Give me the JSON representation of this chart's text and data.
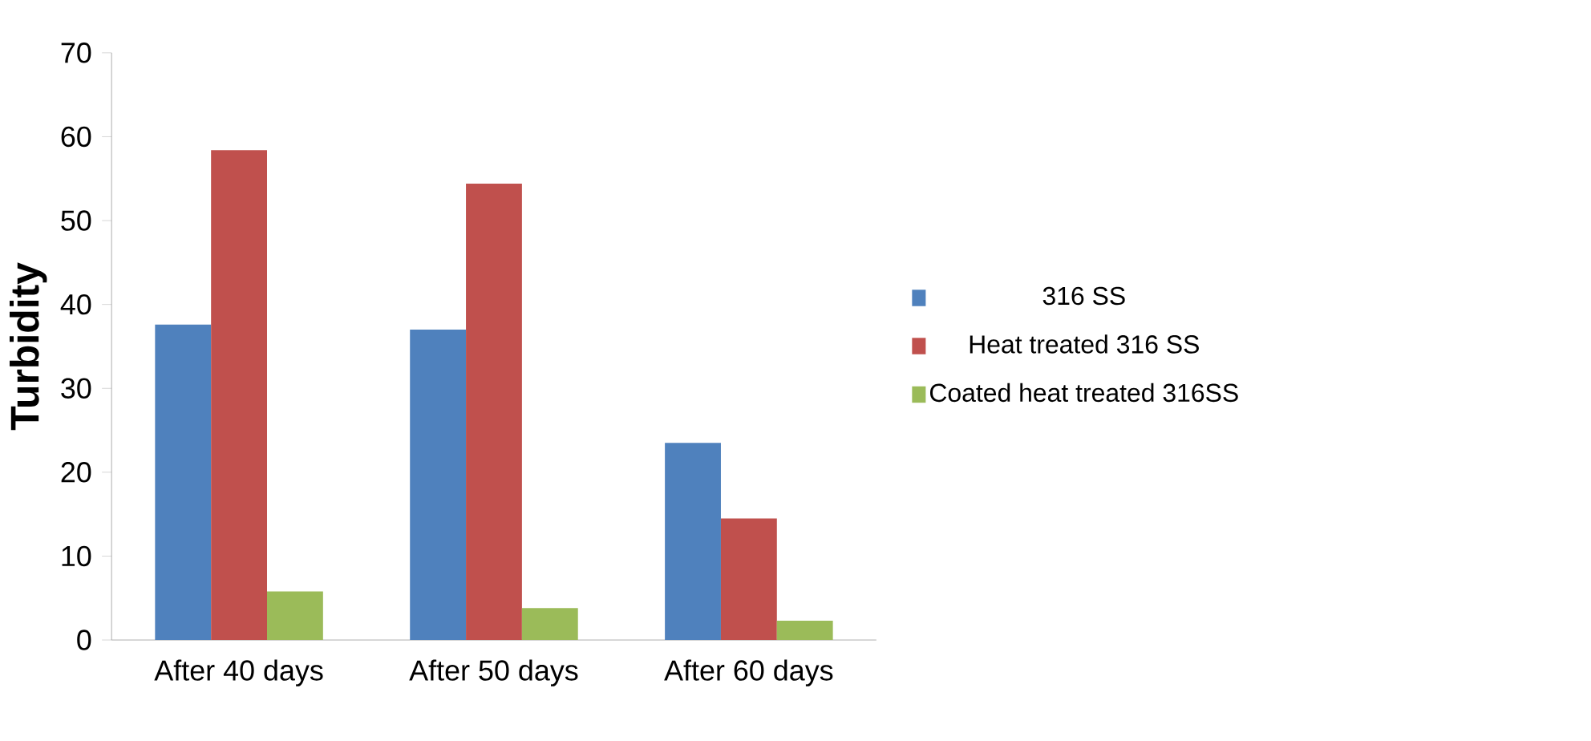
{
  "chart_data": {
    "type": "bar",
    "ylabel": "Turbidity",
    "categories": [
      "After 40 days",
      "After 50 days",
      "After 60 days"
    ],
    "series": [
      {
        "name": "316 SS",
        "color": "#4f81bd",
        "values": [
          37.6,
          37.0,
          23.5
        ]
      },
      {
        "name": "Heat treated 316 SS",
        "color": "#c0504d",
        "values": [
          58.4,
          54.4,
          14.5
        ]
      },
      {
        "name": "Coated heat treated 316SS",
        "color": "#9bbb59",
        "values": [
          5.8,
          3.8,
          2.3
        ]
      }
    ],
    "ylim": [
      0,
      70
    ],
    "yticks": [
      0,
      10,
      20,
      30,
      40,
      50,
      60,
      70
    ],
    "grid": false,
    "legend": "right"
  }
}
